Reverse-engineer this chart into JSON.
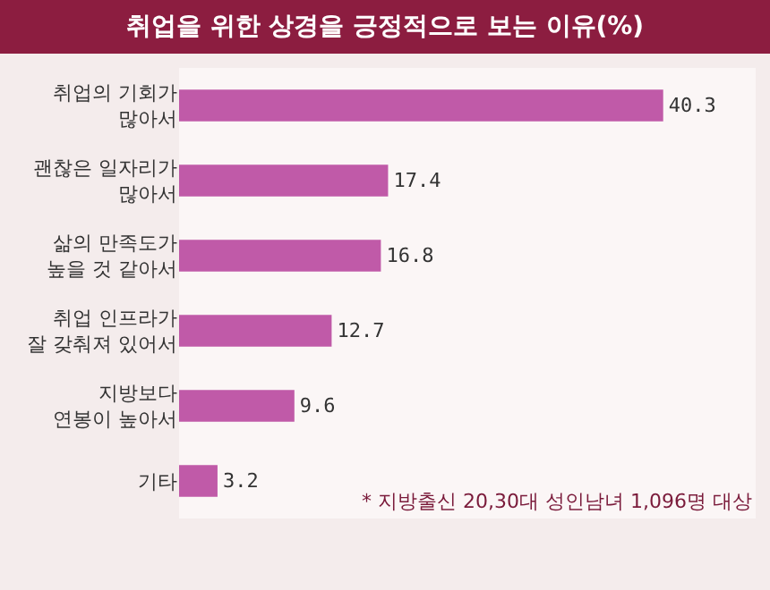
{
  "chart_data": {
    "type": "bar",
    "orientation": "horizontal",
    "title": "취업을 위한 상경을 긍정적으로 보는 이유(%)",
    "categories": [
      "취업의 기회가\n많아서",
      "괜찮은 일자리가\n많아서",
      "삶의 만족도가\n높을 것 같아서",
      "취업 인프라가\n잘 갖춰져 있어서",
      "지방보다\n연봉이 높아서",
      "기타"
    ],
    "values": [
      40.3,
      17.4,
      16.8,
      12.7,
      9.6,
      3.2
    ],
    "color": "#c05aa8",
    "data_labels": true,
    "xlim": [
      0,
      48
    ],
    "tick_labels": "y",
    "grid": false,
    "legend": false,
    "annotations": [
      "* 지방출신 20,30대 성인남녀 1,096명 대상"
    ]
  }
}
